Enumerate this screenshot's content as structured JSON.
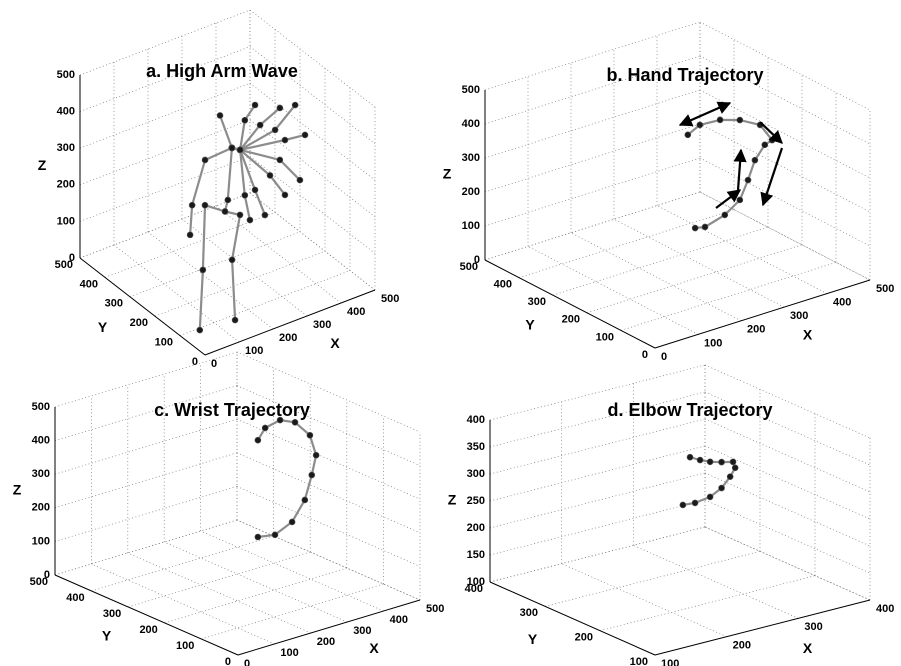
{
  "chart_data": [
    {
      "type": "line3d",
      "title": "a. High Arm Wave",
      "xlabel": "X",
      "ylabel": "Y",
      "zlabel": "Z",
      "xlim": [
        0,
        500
      ],
      "ylim": [
        0,
        500
      ],
      "zlim": [
        0,
        500
      ],
      "xticks": [
        0,
        100,
        200,
        300,
        400,
        500
      ],
      "yticks": [
        0,
        100,
        200,
        300,
        400,
        500
      ],
      "zticks": [
        0,
        100,
        200,
        300,
        400,
        500
      ],
      "color": "#8c8c8c",
      "marker_color": "#1a1a1a",
      "lines": [
        {
          "x": [
            53,
            104,
            147,
            206,
            250,
            190,
            148
          ],
          "y": [
            93,
            150,
            200,
            200,
            200,
            150,
            81
          ],
          "z": [
            0,
            116,
            251,
            213,
            188,
            113,
            0
          ]
        },
        {
          "x": [
            206,
            251,
            263,
            228
          ],
          "y": [
            200,
            250,
            250,
            250
          ],
          "z": [
            213,
            202,
            340,
            441
          ]
        },
        {
          "x": [
            263,
            184,
            146,
            140
          ],
          "y": [
            250,
            250,
            250,
            250
          ],
          "z": [
            340,
            335,
            225,
            146
          ]
        },
        {
          "x": [
            263,
            287,
            301,
            331
          ],
          "y": [
            250,
            250,
            250,
            250
          ],
          "z": [
            340,
            326,
            402,
            433
          ]
        },
        {
          "x": [
            263,
            287,
            346,
            404
          ],
          "y": [
            250,
            250,
            250,
            250
          ],
          "z": [
            340,
            326,
            373,
            399
          ]
        },
        {
          "x": [
            263,
            287,
            390,
            449
          ],
          "y": [
            250,
            250,
            250,
            250
          ],
          "z": [
            340,
            326,
            344,
            391
          ]
        },
        {
          "x": [
            263,
            287,
            419,
            478
          ],
          "y": [
            250,
            250,
            250,
            250
          ],
          "z": [
            340,
            326,
            306,
            299
          ]
        },
        {
          "x": [
            263,
            287,
            404,
            463
          ],
          "y": [
            250,
            250,
            250,
            250
          ],
          "z": [
            340,
            326,
            257,
            181
          ]
        },
        {
          "x": [
            263,
            287,
            375,
            419
          ],
          "y": [
            250,
            250,
            250,
            250
          ],
          "z": [
            340,
            326,
            225,
            156
          ]
        },
        {
          "x": [
            263,
            287,
            331,
            360
          ],
          "y": [
            250,
            250,
            250,
            250
          ],
          "z": [
            340,
            326,
            201,
            122
          ]
        },
        {
          "x": [
            263,
            287,
            301,
            316
          ],
          "y": [
            250,
            250,
            250,
            250
          ],
          "z": [
            340,
            326,
            197,
            124
          ]
        }
      ]
    },
    {
      "type": "line3d",
      "title": "b. Hand Trajectory",
      "xlabel": "X",
      "ylabel": "Y",
      "zlabel": "Z",
      "xlim": [
        0,
        500
      ],
      "ylim": [
        0,
        500
      ],
      "zlim": [
        0,
        500
      ],
      "xticks": [
        0,
        100,
        200,
        300,
        400,
        500
      ],
      "yticks": [
        0,
        100,
        200,
        300,
        400,
        500
      ],
      "zticks": [
        0,
        100,
        200,
        300,
        400,
        500
      ],
      "color": "#8c8c8c",
      "marker_color": "#1a1a1a",
      "lines": [
        {
          "x": [
            291,
            314,
            360,
            395,
            414,
            430,
            453,
            470,
            442,
            395,
            349,
            302,
            274
          ],
          "y": [
            250,
            250,
            250,
            250,
            250,
            250,
            250,
            250,
            250,
            250,
            250,
            250,
            250
          ],
          "z": [
            107,
            101,
            118,
            148,
            199,
            251,
            287,
            294,
            350,
            383,
            402,
            406,
            388
          ]
        }
      ]
    },
    {
      "type": "line3d",
      "title": "c. Wrist Trajectory",
      "xlabel": "X",
      "ylabel": "Y",
      "zlabel": "Z",
      "xlim": [
        0,
        500
      ],
      "ylim": [
        0,
        500
      ],
      "zlim": [
        0,
        500
      ],
      "xticks": [
        0,
        100,
        200,
        300,
        400,
        500
      ],
      "yticks": [
        0,
        100,
        200,
        300,
        400,
        500
      ],
      "zticks": [
        0,
        100,
        200,
        300,
        400,
        500
      ],
      "color": "#8c8c8c",
      "marker_color": "#1a1a1a",
      "lines": [
        {
          "x": [
            306,
            353,
            400,
            435,
            454,
            466,
            449,
            408,
            367,
            326,
            306
          ],
          "y": [
            250,
            250,
            250,
            250,
            250,
            250,
            250,
            250,
            250,
            250,
            250
          ],
          "z": [
            132,
            123,
            146,
            200,
            268,
            323,
            388,
            440,
            460,
            450,
            420
          ]
        }
      ]
    },
    {
      "type": "line3d",
      "title": "d. Elbow Trajectory",
      "xlabel": "X",
      "ylabel": "Y",
      "zlabel": "Z",
      "xlim": [
        100,
        400
      ],
      "ylim": [
        100,
        400
      ],
      "zlim": [
        100,
        400
      ],
      "xticks": [
        100,
        200,
        300,
        400
      ],
      "yticks": [
        100,
        200,
        300,
        400
      ],
      "zticks": [
        100,
        150,
        200,
        250,
        300,
        350,
        400
      ],
      "color": "#8c8c8c",
      "marker_color": "#1a1a1a",
      "lines": [
        {
          "x": [
            254,
            271,
            292,
            308,
            320,
            327,
            324,
            308,
            292,
            278,
            264
          ],
          "y": [
            250,
            250,
            250,
            250,
            250,
            250,
            250,
            250,
            250,
            250,
            250
          ],
          "z": [
            258,
            256,
            260,
            271,
            288,
            302,
            314,
            319,
            325,
            333,
            343
          ]
        }
      ]
    }
  ]
}
